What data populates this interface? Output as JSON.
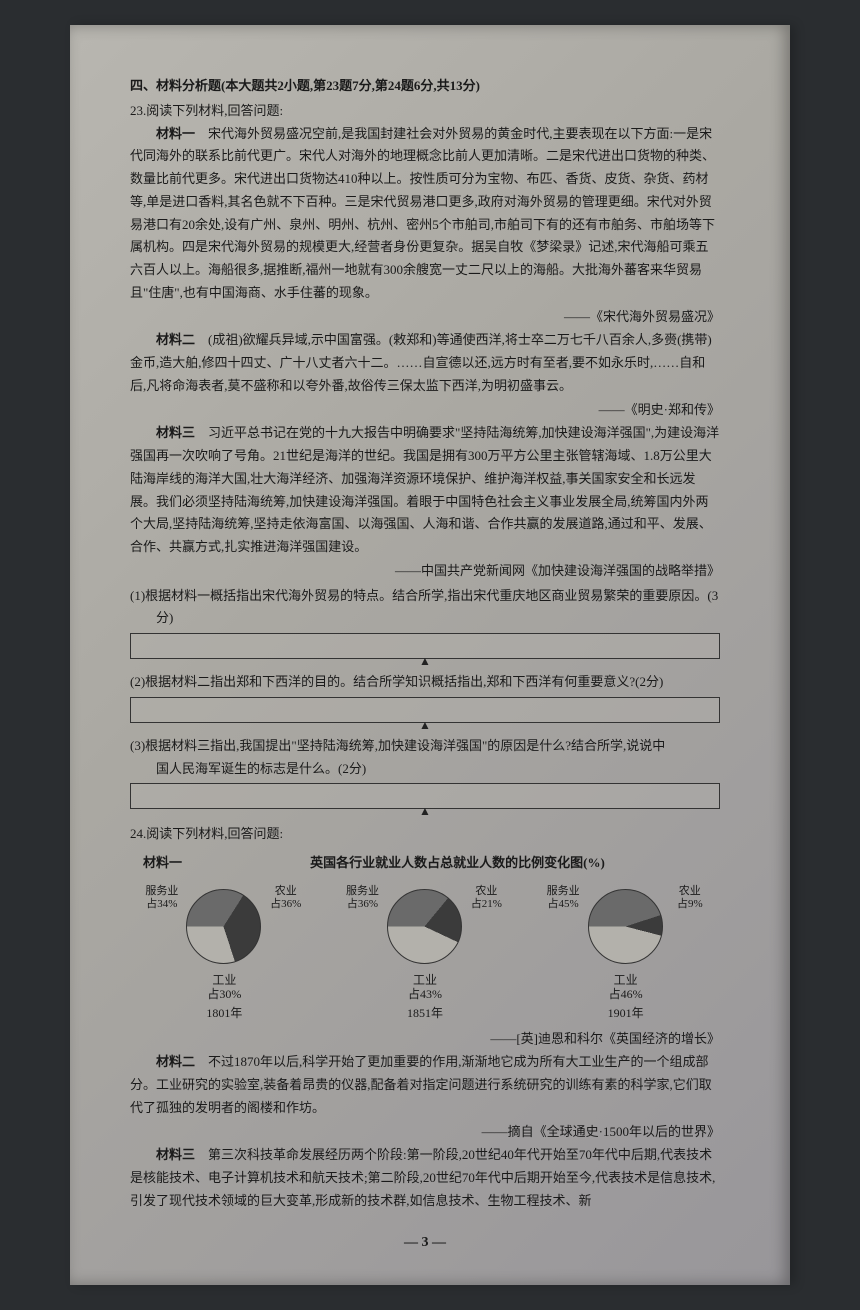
{
  "section_header": "四、材料分析题(本大题共2小题,第23题7分,第24题6分,共13分)",
  "q23": {
    "stem": "23.阅读下列材料,回答问题:",
    "m1_label": "材料一",
    "m1_text": "　宋代海外贸易盛况空前,是我国封建社会对外贸易的黄金时代,主要表现在以下方面:一是宋代同海外的联系比前代更广。宋代人对海外的地理概念比前人更加清晰。二是宋代进出口货物的种类、数量比前代更多。宋代进出口货物达410种以上。按性质可分为宝物、布匹、香货、皮货、杂货、药材等,单是进口香料,其名色就不下百种。三是宋代贸易港口更多,政府对海外贸易的管理更细。宋代对外贸易港口有20余处,设有广州、泉州、明州、杭州、密州5个市舶司,市舶司下有的还有市舶务、市舶场等下属机构。四是宋代海外贸易的规模更大,经营者身份更复杂。据吴自牧《梦梁录》记述,宋代海船可乘五六百人以上。海船很多,据推断,福州一地就有300余艘宽一丈二尺以上的海船。大批海外蕃客来华贸易且\"住唐\",也有中国海商、水手住蕃的现象。",
    "m1_source": "——《宋代海外贸易盛况》",
    "m2_label": "材料二",
    "m2_text": "　(成祖)欲耀兵异域,示中国富强。(敕郑和)等通使西洋,将士卒二万七千八百余人,多赍(携带)金币,造大舶,修四十四丈、广十八丈者六十二。……自宣德以还,远方时有至者,要不如永乐时,……自和后,凡将命海表者,莫不盛称和以夸外番,故俗传三保太监下西洋,为明初盛事云。",
    "m2_source": "——《明史·郑和传》",
    "m3_label": "材料三",
    "m3_text": "　习近平总书记在党的十九大报告中明确要求\"坚持陆海统筹,加快建设海洋强国\",为建设海洋强国再一次吹响了号角。21世纪是海洋的世纪。我国是拥有300万平方公里主张管辖海域、1.8万公里大陆海岸线的海洋大国,壮大海洋经济、加强海洋资源环境保护、维护海洋权益,事关国家安全和长远发展。我们必须坚持陆海统筹,加快建设海洋强国。着眼于中国特色社会主义事业发展全局,统筹国内外两个大局,坚持陆海统筹,坚持走依海富国、以海强国、人海和谐、合作共赢的发展道路,通过和平、发展、合作、共赢方式,扎实推进海洋强国建设。",
    "m3_source": "——中国共产党新闻网《加快建设海洋强国的战略举措》",
    "sq1": "(1)根据材料一概括指出宋代海外贸易的特点。结合所学,指出宋代重庆地区商业贸易繁荣的重要原因。(3分)",
    "sq2": "(2)根据材料二指出郑和下西洋的目的。结合所学知识概括指出,郑和下西洋有何重要意义?(2分)",
    "sq3a": "(3)根据材料三指出,我国提出\"坚持陆海统筹,加快建设海洋强国\"的原因是什么?结合所学,说说中",
    "sq3b": "国人民海军诞生的标志是什么。(2分)"
  },
  "q24": {
    "stem": "24.阅读下列材料,回答问题:",
    "m1_label": "材料一",
    "chart_title": "英国各行业就业人数占总就业人数的比例变化图(%)",
    "charts": [
      {
        "year": "1801年",
        "slices": [
          {
            "name": "服务业",
            "pct": 34,
            "color": "#6a6a6a"
          },
          {
            "name": "农业",
            "pct": 36,
            "color": "#3b3b3b"
          },
          {
            "name": "工业",
            "pct": 30,
            "color": "#b3b1ab"
          }
        ],
        "labels": {
          "service": "服务业\n占34%",
          "agri": "农业\n占36%",
          "ind": "工业\n占30%"
        }
      },
      {
        "year": "1851年",
        "slices": [
          {
            "name": "服务业",
            "pct": 36,
            "color": "#6a6a6a"
          },
          {
            "name": "农业",
            "pct": 21,
            "color": "#3b3b3b"
          },
          {
            "name": "工业",
            "pct": 43,
            "color": "#b3b1ab"
          }
        ],
        "labels": {
          "service": "服务业\n占36%",
          "agri": "农业\n占21%",
          "ind": "工业\n占43%"
        }
      },
      {
        "year": "1901年",
        "slices": [
          {
            "name": "服务业",
            "pct": 45,
            "color": "#6a6a6a"
          },
          {
            "name": "农业",
            "pct": 9,
            "color": "#3b3b3b"
          },
          {
            "name": "工业",
            "pct": 46,
            "color": "#b3b1ab"
          }
        ],
        "labels": {
          "service": "服务业\n占45%",
          "agri": "农业\n占9%",
          "ind": "工业\n占46%"
        }
      }
    ],
    "chart_source": "——[英]迪恩和科尔《英国经济的增长》",
    "m2_label": "材料二",
    "m2_text": "　不过1870年以后,科学开始了更加重要的作用,渐渐地它成为所有大工业生产的一个组成部分。工业研究的实验室,装备着昂贵的仪器,配备着对指定问题进行系统研究的训练有素的科学家,它们取代了孤独的发明者的阁楼和作坊。",
    "m2_source": "——摘自《全球通史·1500年以后的世界》",
    "m3_label": "材料三",
    "m3_text": "　第三次科技革命发展经历两个阶段:第一阶段,20世纪40年代开始至70年代中后期,代表技术是核能技术、电子计算机技术和航天技术;第二阶段,20世纪70年代中后期开始至今,代表技术是信息技术,引发了现代技术领域的巨大变革,形成新的技术群,如信息技术、生物工程技术、新"
  },
  "page_num": "— 3 —"
}
